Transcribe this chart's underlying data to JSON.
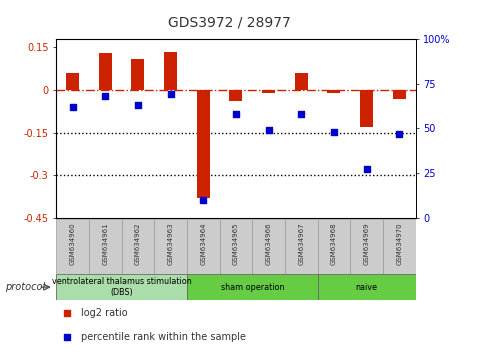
{
  "title": "GDS3972 / 28977",
  "samples": [
    "GSM634960",
    "GSM634961",
    "GSM634962",
    "GSM634963",
    "GSM634964",
    "GSM634965",
    "GSM634966",
    "GSM634967",
    "GSM634968",
    "GSM634969",
    "GSM634970"
  ],
  "log2_ratio": [
    0.06,
    0.13,
    0.11,
    0.135,
    -0.38,
    -0.04,
    -0.01,
    0.06,
    -0.01,
    -0.13,
    -0.03
  ],
  "percentile_rank": [
    62,
    68,
    63,
    69,
    10,
    58,
    49,
    58,
    48,
    27,
    47
  ],
  "bar_color": "#cc2200",
  "dot_color": "#0000cc",
  "hline_color": "#cc2200",
  "dotted_line_color": "#000000",
  "ylim_left": [
    -0.45,
    0.18
  ],
  "ylim_right": [
    0,
    100
  ],
  "yticks_left": [
    0.15,
    0.0,
    -0.15,
    -0.3,
    -0.45
  ],
  "yticks_left_labels": [
    "0.15",
    "0",
    "-0.15",
    "-0.3",
    "-0.45"
  ],
  "yticks_right": [
    100,
    75,
    50,
    25,
    0
  ],
  "yticks_right_labels": [
    "100%",
    "75",
    "50",
    "25",
    "0"
  ],
  "groups": [
    {
      "label": "ventrolateral thalamus stimulation\n(DBS)",
      "start": 0,
      "end": 3,
      "color": "#aaddaa"
    },
    {
      "label": "sham operation",
      "start": 4,
      "end": 7,
      "color": "#66cc44"
    },
    {
      "label": "naive",
      "start": 8,
      "end": 10,
      "color": "#66cc44"
    }
  ],
  "protocol_label": "protocol",
  "legend_items": [
    {
      "label": "log2 ratio",
      "color": "#cc2200"
    },
    {
      "label": "percentile rank within the sample",
      "color": "#0000cc"
    }
  ],
  "background_color": "#ffffff",
  "tick_label_color_left": "#cc2200",
  "tick_label_color_right": "#0000cc",
  "bar_width": 0.4
}
